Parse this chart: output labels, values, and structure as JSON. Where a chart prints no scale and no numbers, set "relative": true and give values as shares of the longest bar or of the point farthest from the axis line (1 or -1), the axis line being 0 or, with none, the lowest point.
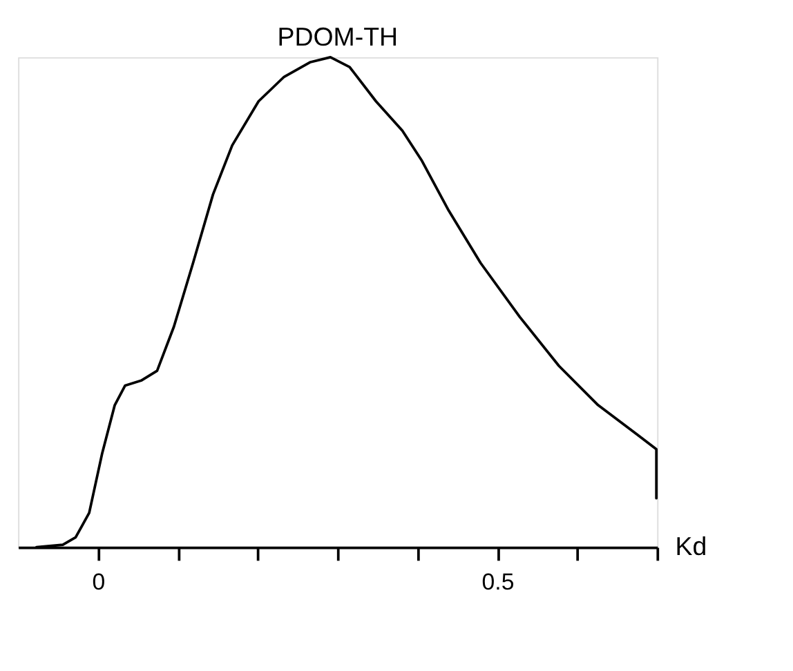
{
  "chart_data": {
    "type": "line",
    "title": "PDOM-TH",
    "xlabel": "Kd",
    "relative": true,
    "xlim": [
      -0.1,
      0.7
    ],
    "xticks": [
      {
        "value": 0,
        "label": "0"
      },
      {
        "value": 0.1,
        "label": null
      },
      {
        "value": 0.2,
        "label": null
      },
      {
        "value": 0.3,
        "label": null
      },
      {
        "value": 0.4,
        "label": null
      },
      {
        "value": 0.5,
        "label": "0.5"
      },
      {
        "value": 0.6,
        "label": null
      },
      {
        "value": 0.7,
        "label": null
      }
    ],
    "tick_labels": "x",
    "grid": false,
    "marker": "none",
    "line_style": "solid",
    "series": [
      {
        "color": "#000000",
        "x": [
          -0.077,
          -0.044,
          -0.028,
          -0.011,
          0.005,
          0.021,
          0.034,
          0.054,
          0.074,
          0.095,
          0.119,
          0.144,
          0.168,
          0.201,
          0.233,
          0.266,
          0.291,
          0.315,
          0.348,
          0.381,
          0.405,
          0.438,
          0.479,
          0.528,
          0.577,
          0.626,
          0.675,
          0.699,
          0.699
        ],
        "values": [
          0,
          0.005,
          0.02,
          0.07,
          0.19,
          0.29,
          0.33,
          0.34,
          0.36,
          0.45,
          0.58,
          0.72,
          0.82,
          0.91,
          0.96,
          0.99,
          1.0,
          0.98,
          0.91,
          0.85,
          0.79,
          0.69,
          0.58,
          0.47,
          0.37,
          0.29,
          0.23,
          0.2,
          0.1
        ]
      }
    ]
  }
}
